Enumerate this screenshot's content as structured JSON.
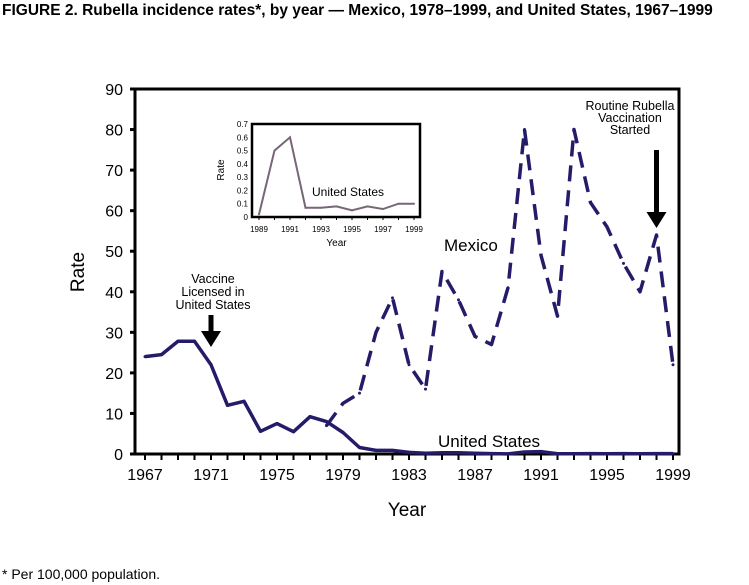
{
  "title": "FIGURE 2. Rubella incidence rates*, by year — Mexico, 1978–1999, and United States, 1967–1999",
  "footnote": "* Per 100,000 population.",
  "colors": {
    "series": "#241c68",
    "inset": "#776677",
    "axis": "#000000"
  },
  "chart_data": [
    {
      "type": "line",
      "xlabel": "Year",
      "ylabel": "Rate",
      "xlim": [
        1967,
        1999
      ],
      "ylim": [
        0,
        90
      ],
      "xticks": [
        "1967",
        "1971",
        "1975",
        "1979",
        "1983",
        "1987",
        "1991",
        "1995",
        "1999"
      ],
      "yticks": [
        "0",
        "10",
        "20",
        "30",
        "40",
        "50",
        "60",
        "70",
        "80",
        "90"
      ],
      "series": [
        {
          "name": "United States",
          "style": "solid",
          "x": [
            1967,
            1968,
            1969,
            1970,
            1971,
            1972,
            1973,
            1974,
            1975,
            1976,
            1977,
            1978,
            1979,
            1980,
            1981,
            1982,
            1983,
            1984,
            1985,
            1986,
            1987,
            1988,
            1989,
            1990,
            1991,
            1992,
            1993,
            1994,
            1995,
            1996,
            1997,
            1998,
            1999
          ],
          "values": [
            24,
            24.5,
            27.8,
            27.8,
            22,
            12,
            13,
            5.6,
            7.5,
            5.5,
            9.2,
            8,
            5.3,
            1.6,
            0.9,
            0.9,
            0.4,
            0.2,
            0.3,
            0.3,
            0.2,
            0.1,
            0.02,
            0.5,
            0.6,
            0.07,
            0.07,
            0.08,
            0.05,
            0.08,
            0.06,
            0.1,
            0.1
          ]
        },
        {
          "name": "Mexico",
          "style": "dashed",
          "x": [
            1978,
            1979,
            1980,
            1981,
            1982,
            1983,
            1984,
            1985,
            1986,
            1987,
            1988,
            1989,
            1990,
            1991,
            1992,
            1993,
            1994,
            1995,
            1996,
            1997,
            1998,
            1999
          ],
          "values": [
            7,
            12.5,
            15,
            30,
            38.5,
            22,
            16,
            45,
            38,
            29,
            27,
            41,
            80,
            49,
            34,
            80,
            62,
            56,
            47,
            40,
            54,
            22
          ]
        }
      ],
      "annotations": [
        "Vaccine Licensed in United States",
        "Routine Rubella Vaccination Started"
      ],
      "annotation_years": [
        1971,
        1998
      ]
    },
    {
      "type": "line",
      "inset": true,
      "xlabel": "Year",
      "ylabel": "Rate",
      "xlim": [
        1989,
        1999
      ],
      "ylim": [
        0,
        0.7
      ],
      "xticks": [
        "1989",
        "1991",
        "1993",
        "1995",
        "1997",
        "1999"
      ],
      "yticks": [
        "0",
        "0.1",
        "0.2",
        "0.3",
        "0.4",
        "0.5",
        "0.6",
        "0.7"
      ],
      "series": [
        {
          "name": "United States",
          "x": [
            1989,
            1990,
            1991,
            1992,
            1993,
            1994,
            1995,
            1996,
            1997,
            1998,
            1999
          ],
          "values": [
            0.02,
            0.5,
            0.6,
            0.07,
            0.07,
            0.08,
            0.05,
            0.08,
            0.06,
            0.1,
            0.1
          ]
        }
      ]
    }
  ]
}
